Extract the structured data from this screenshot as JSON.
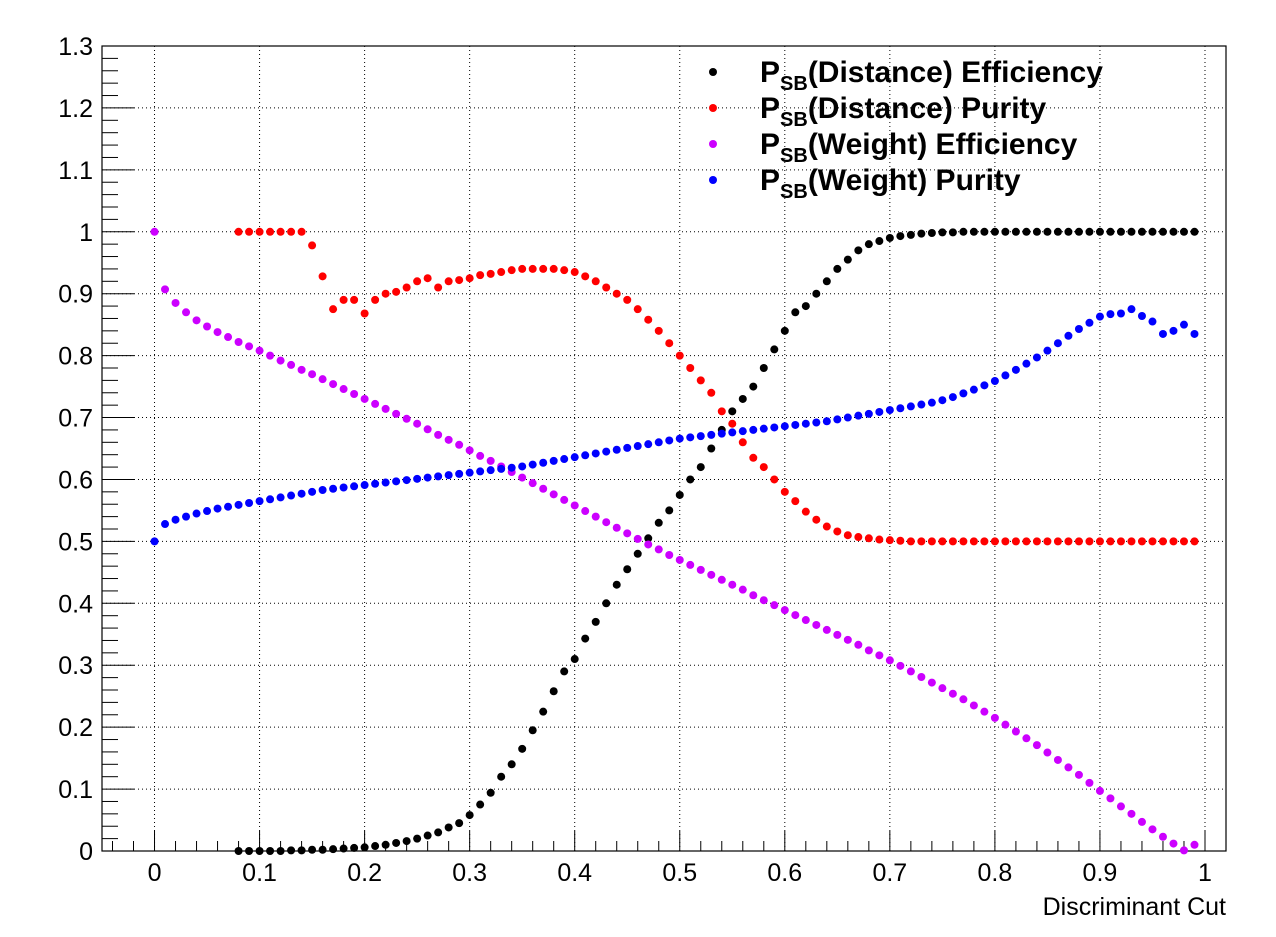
{
  "chart_data": {
    "type": "scatter",
    "xlabel": "Discriminant Cut",
    "ylabel": "",
    "xlim": [
      -0.05,
      1.02
    ],
    "ylim": [
      0,
      1.3
    ],
    "xticks": [
      "0",
      "0.1",
      "0.2",
      "0.3",
      "0.4",
      "0.5",
      "0.6",
      "0.7",
      "0.8",
      "0.9",
      "1"
    ],
    "yticks": [
      "0",
      "0.1",
      "0.2",
      "0.3",
      "0.4",
      "0.5",
      "0.6",
      "0.7",
      "0.8",
      "0.9",
      "1",
      "1.1",
      "1.2",
      "1.3"
    ],
    "grid": true,
    "legend_position": "top-right",
    "series": [
      {
        "name": "P_SB(Distance) Efficiency",
        "legend_main": "P",
        "legend_sub": "SB",
        "legend_rest": "(Distance) Efficiency",
        "color": "#000000",
        "x": [
          0.08,
          0.09,
          0.1,
          0.11,
          0.12,
          0.13,
          0.14,
          0.15,
          0.16,
          0.17,
          0.18,
          0.19,
          0.2,
          0.21,
          0.22,
          0.23,
          0.24,
          0.25,
          0.26,
          0.27,
          0.28,
          0.29,
          0.3,
          0.31,
          0.32,
          0.33,
          0.34,
          0.35,
          0.36,
          0.37,
          0.38,
          0.39,
          0.4,
          0.41,
          0.42,
          0.43,
          0.44,
          0.45,
          0.46,
          0.47,
          0.48,
          0.49,
          0.5,
          0.51,
          0.52,
          0.53,
          0.54,
          0.55,
          0.56,
          0.57,
          0.58,
          0.59,
          0.6,
          0.61,
          0.62,
          0.63,
          0.64,
          0.65,
          0.66,
          0.67,
          0.68,
          0.69,
          0.7,
          0.71,
          0.72,
          0.73,
          0.74,
          0.75,
          0.76,
          0.77,
          0.78,
          0.79,
          0.8,
          0.81,
          0.82,
          0.83,
          0.84,
          0.85,
          0.86,
          0.87,
          0.88,
          0.89,
          0.9,
          0.91,
          0.92,
          0.93,
          0.94,
          0.95,
          0.96,
          0.97,
          0.98,
          0.99
        ],
        "y": [
          0,
          0,
          0,
          0,
          0,
          0.001,
          0.001,
          0.002,
          0.002,
          0.003,
          0.004,
          0.005,
          0.006,
          0.008,
          0.01,
          0.013,
          0.016,
          0.02,
          0.025,
          0.03,
          0.038,
          0.045,
          0.058,
          0.075,
          0.094,
          0.12,
          0.14,
          0.165,
          0.195,
          0.225,
          0.258,
          0.29,
          0.31,
          0.343,
          0.37,
          0.4,
          0.43,
          0.455,
          0.48,
          0.505,
          0.53,
          0.55,
          0.575,
          0.6,
          0.62,
          0.65,
          0.68,
          0.71,
          0.73,
          0.75,
          0.78,
          0.81,
          0.84,
          0.87,
          0.88,
          0.9,
          0.92,
          0.94,
          0.955,
          0.97,
          0.98,
          0.985,
          0.99,
          0.993,
          0.995,
          0.997,
          0.998,
          0.999,
          0.999,
          1,
          1,
          1,
          1,
          1,
          1,
          1,
          1,
          1,
          1,
          1,
          1,
          1,
          1,
          1,
          1,
          1,
          1,
          1,
          1,
          1,
          1,
          1
        ]
      },
      {
        "name": "P_SB(Distance) Purity",
        "legend_main": "P",
        "legend_sub": "SB",
        "legend_rest": "(Distance) Purity",
        "color": "#ff0000",
        "x": [
          0.08,
          0.09,
          0.1,
          0.11,
          0.12,
          0.13,
          0.14,
          0.15,
          0.16,
          0.17,
          0.18,
          0.19,
          0.2,
          0.21,
          0.22,
          0.23,
          0.24,
          0.25,
          0.26,
          0.27,
          0.28,
          0.29,
          0.3,
          0.31,
          0.32,
          0.33,
          0.34,
          0.35,
          0.36,
          0.37,
          0.38,
          0.39,
          0.4,
          0.41,
          0.42,
          0.43,
          0.44,
          0.45,
          0.46,
          0.47,
          0.48,
          0.49,
          0.5,
          0.51,
          0.52,
          0.53,
          0.54,
          0.55,
          0.56,
          0.57,
          0.58,
          0.59,
          0.6,
          0.61,
          0.62,
          0.63,
          0.64,
          0.65,
          0.66,
          0.67,
          0.68,
          0.69,
          0.7,
          0.71,
          0.72,
          0.73,
          0.74,
          0.75,
          0.76,
          0.77,
          0.78,
          0.79,
          0.8,
          0.81,
          0.82,
          0.83,
          0.84,
          0.85,
          0.86,
          0.87,
          0.88,
          0.89,
          0.9,
          0.91,
          0.92,
          0.93,
          0.94,
          0.95,
          0.96,
          0.97,
          0.98,
          0.99
        ],
        "y": [
          1,
          1,
          1,
          1,
          1,
          1,
          1,
          0.978,
          0.928,
          0.875,
          0.89,
          0.89,
          0.868,
          0.89,
          0.9,
          0.903,
          0.91,
          0.92,
          0.925,
          0.91,
          0.92,
          0.922,
          0.925,
          0.93,
          0.932,
          0.935,
          0.938,
          0.94,
          0.94,
          0.94,
          0.94,
          0.938,
          0.935,
          0.928,
          0.92,
          0.91,
          0.9,
          0.89,
          0.875,
          0.858,
          0.84,
          0.82,
          0.8,
          0.78,
          0.76,
          0.74,
          0.71,
          0.69,
          0.66,
          0.635,
          0.62,
          0.6,
          0.58,
          0.565,
          0.548,
          0.535,
          0.524,
          0.516,
          0.51,
          0.507,
          0.505,
          0.503,
          0.502,
          0.501,
          0.5,
          0.5,
          0.5,
          0.5,
          0.5,
          0.5,
          0.5,
          0.5,
          0.5,
          0.5,
          0.5,
          0.5,
          0.5,
          0.5,
          0.5,
          0.5,
          0.5,
          0.5,
          0.5,
          0.5,
          0.5,
          0.5,
          0.5,
          0.5,
          0.5,
          0.5,
          0.5,
          0.5
        ]
      },
      {
        "name": "P_SB(Weight) Efficiency",
        "legend_main": "P",
        "legend_sub": "SB",
        "legend_rest": "(Weight) Efficiency",
        "color": "#cc00ff",
        "x": [
          0,
          0.01,
          0.02,
          0.03,
          0.04,
          0.05,
          0.06,
          0.07,
          0.08,
          0.09,
          0.1,
          0.11,
          0.12,
          0.13,
          0.14,
          0.15,
          0.16,
          0.17,
          0.18,
          0.19,
          0.2,
          0.21,
          0.22,
          0.23,
          0.24,
          0.25,
          0.26,
          0.27,
          0.28,
          0.29,
          0.3,
          0.31,
          0.32,
          0.33,
          0.34,
          0.35,
          0.36,
          0.37,
          0.38,
          0.39,
          0.4,
          0.41,
          0.42,
          0.43,
          0.44,
          0.45,
          0.46,
          0.47,
          0.48,
          0.49,
          0.5,
          0.51,
          0.52,
          0.53,
          0.54,
          0.55,
          0.56,
          0.57,
          0.58,
          0.59,
          0.6,
          0.61,
          0.62,
          0.63,
          0.64,
          0.65,
          0.66,
          0.67,
          0.68,
          0.69,
          0.7,
          0.71,
          0.72,
          0.73,
          0.74,
          0.75,
          0.76,
          0.77,
          0.78,
          0.79,
          0.8,
          0.81,
          0.82,
          0.83,
          0.84,
          0.85,
          0.86,
          0.87,
          0.88,
          0.89,
          0.9,
          0.91,
          0.92,
          0.93,
          0.94,
          0.95,
          0.96,
          0.97,
          0.98,
          0.99
        ],
        "y": [
          1,
          0.907,
          0.885,
          0.87,
          0.857,
          0.847,
          0.838,
          0.83,
          0.822,
          0.815,
          0.808,
          0.8,
          0.792,
          0.785,
          0.777,
          0.77,
          0.762,
          0.754,
          0.746,
          0.738,
          0.73,
          0.722,
          0.714,
          0.706,
          0.698,
          0.69,
          0.681,
          0.672,
          0.664,
          0.656,
          0.647,
          0.638,
          0.63,
          0.621,
          0.612,
          0.603,
          0.594,
          0.585,
          0.576,
          0.567,
          0.558,
          0.549,
          0.54,
          0.531,
          0.522,
          0.513,
          0.504,
          0.495,
          0.487,
          0.478,
          0.47,
          0.462,
          0.454,
          0.446,
          0.438,
          0.43,
          0.422,
          0.413,
          0.405,
          0.397,
          0.389,
          0.381,
          0.373,
          0.365,
          0.357,
          0.349,
          0.341,
          0.333,
          0.324,
          0.316,
          0.308,
          0.299,
          0.29,
          0.281,
          0.272,
          0.263,
          0.254,
          0.245,
          0.235,
          0.225,
          0.215,
          0.204,
          0.193,
          0.182,
          0.171,
          0.159,
          0.147,
          0.135,
          0.123,
          0.11,
          0.097,
          0.085,
          0.072,
          0.06,
          0.047,
          0.035,
          0.023,
          0.012,
          0.001,
          0.01
        ]
      },
      {
        "name": "P_SB(Weight) Purity",
        "legend_main": "P",
        "legend_sub": "SB",
        "legend_rest": "(Weight) Purity",
        "color": "#0000ff",
        "x": [
          0,
          0.01,
          0.02,
          0.03,
          0.04,
          0.05,
          0.06,
          0.07,
          0.08,
          0.09,
          0.1,
          0.11,
          0.12,
          0.13,
          0.14,
          0.15,
          0.16,
          0.17,
          0.18,
          0.19,
          0.2,
          0.21,
          0.22,
          0.23,
          0.24,
          0.25,
          0.26,
          0.27,
          0.28,
          0.29,
          0.3,
          0.31,
          0.32,
          0.33,
          0.34,
          0.35,
          0.36,
          0.37,
          0.38,
          0.39,
          0.4,
          0.41,
          0.42,
          0.43,
          0.44,
          0.45,
          0.46,
          0.47,
          0.48,
          0.49,
          0.5,
          0.51,
          0.52,
          0.53,
          0.54,
          0.55,
          0.56,
          0.57,
          0.58,
          0.59,
          0.6,
          0.61,
          0.62,
          0.63,
          0.64,
          0.65,
          0.66,
          0.67,
          0.68,
          0.69,
          0.7,
          0.71,
          0.72,
          0.73,
          0.74,
          0.75,
          0.76,
          0.77,
          0.78,
          0.79,
          0.8,
          0.81,
          0.82,
          0.83,
          0.84,
          0.85,
          0.86,
          0.87,
          0.88,
          0.89,
          0.9,
          0.91,
          0.92,
          0.93,
          0.94,
          0.95,
          0.96,
          0.97,
          0.98,
          0.99
        ],
        "y": [
          0.5,
          0.528,
          0.535,
          0.54,
          0.545,
          0.549,
          0.553,
          0.556,
          0.559,
          0.562,
          0.565,
          0.568,
          0.571,
          0.574,
          0.577,
          0.58,
          0.583,
          0.585,
          0.587,
          0.589,
          0.591,
          0.593,
          0.595,
          0.597,
          0.599,
          0.601,
          0.603,
          0.605,
          0.607,
          0.609,
          0.611,
          0.613,
          0.615,
          0.617,
          0.619,
          0.621,
          0.624,
          0.627,
          0.63,
          0.633,
          0.636,
          0.639,
          0.642,
          0.645,
          0.648,
          0.651,
          0.654,
          0.657,
          0.66,
          0.663,
          0.666,
          0.668,
          0.67,
          0.672,
          0.674,
          0.676,
          0.678,
          0.68,
          0.682,
          0.684,
          0.686,
          0.688,
          0.69,
          0.692,
          0.694,
          0.697,
          0.7,
          0.703,
          0.706,
          0.709,
          0.712,
          0.715,
          0.718,
          0.721,
          0.724,
          0.728,
          0.733,
          0.739,
          0.745,
          0.752,
          0.759,
          0.768,
          0.777,
          0.787,
          0.797,
          0.808,
          0.82,
          0.832,
          0.843,
          0.853,
          0.863,
          0.867,
          0.868,
          0.875,
          0.864,
          0.855,
          0.835,
          0.84,
          0.85,
          0.835
        ]
      }
    ]
  }
}
